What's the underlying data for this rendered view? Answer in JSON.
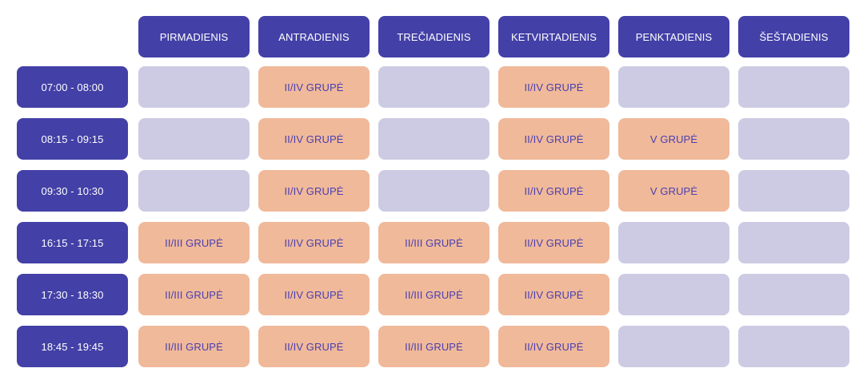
{
  "days": [
    "PIRMADIENIS",
    "ANTRADIENIS",
    "TREČIADIENIS",
    "KETVIRTADIENIS",
    "PENKTADIENIS",
    "ŠEŠTADIENIS"
  ],
  "rows": [
    {
      "time": "07:00 - 08:00",
      "slots": [
        "",
        "II/IV GRUPĖ",
        "",
        "II/IV GRUPĖ",
        "",
        ""
      ]
    },
    {
      "time": "08:15 - 09:15",
      "slots": [
        "",
        "II/IV GRUPĖ",
        "",
        "II/IV GRUPĖ",
        "V GRUPĖ",
        ""
      ]
    },
    {
      "time": "09:30 - 10:30",
      "slots": [
        "",
        "II/IV GRUPĖ",
        "",
        "II/IV GRUPĖ",
        "V GRUPĖ",
        ""
      ]
    },
    {
      "time": "16:15 - 17:15",
      "slots": [
        "II/III GRUPĖ",
        "II/IV GRUPĖ",
        "II/III GRUPĖ",
        "II/IV GRUPĖ",
        "",
        ""
      ]
    },
    {
      "time": "17:30 - 18:30",
      "slots": [
        "II/III GRUPĖ",
        "II/IV GRUPĖ",
        "II/III GRUPĖ",
        "II/IV GRUPĖ",
        "",
        ""
      ]
    },
    {
      "time": "18:45 - 19:45",
      "slots": [
        "II/III GRUPĖ",
        "II/IV GRUPĖ",
        "II/III GRUPĖ",
        "II/IV GRUPĖ",
        "",
        ""
      ]
    }
  ],
  "colors": {
    "header": "#4340a7",
    "empty_slot": "#cdcbe3",
    "booked_slot": "#f0b99a",
    "booked_text": "#4a3fb0"
  }
}
